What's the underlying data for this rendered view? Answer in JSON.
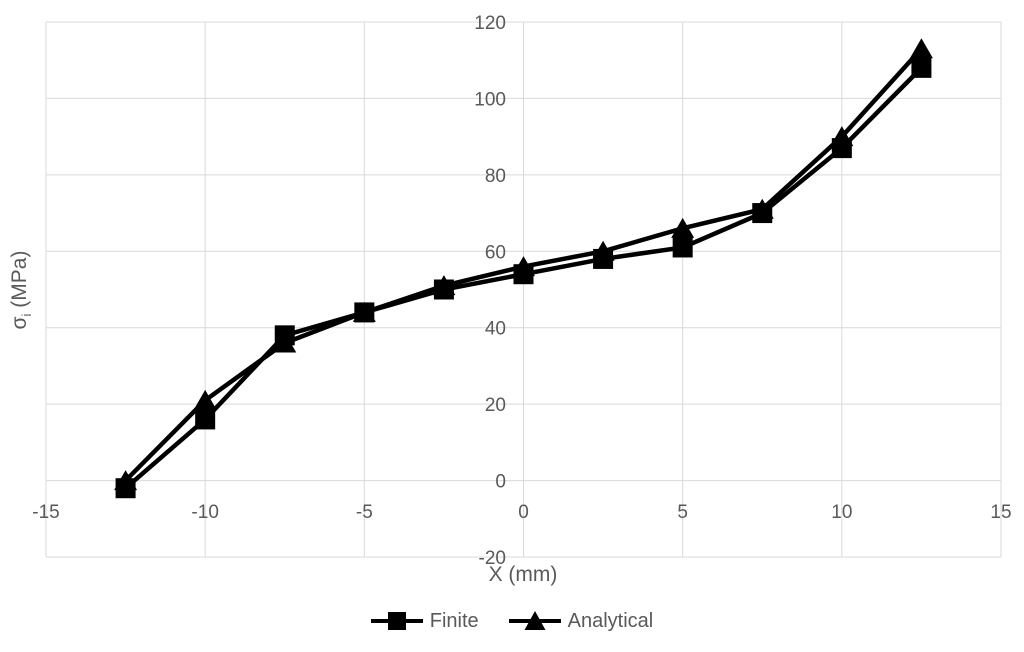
{
  "chart_data": {
    "type": "line",
    "title": "",
    "xlabel": "X (mm)",
    "ylabel": {
      "main": "σ",
      "sub": "i",
      "unit": " (MPa)"
    },
    "xlim": [
      -15,
      15
    ],
    "ylim": [
      -20,
      120
    ],
    "x_ticks": [
      -15,
      -10,
      -5,
      0,
      5,
      10,
      15
    ],
    "y_ticks": [
      120,
      100,
      80,
      60,
      40,
      20,
      0,
      -20
    ],
    "grid": true,
    "legend_position": "bottom",
    "x": [
      -12.5,
      -10,
      -7.5,
      -5,
      -2.5,
      0,
      2.5,
      5,
      7.5,
      10,
      12.5
    ],
    "series": [
      {
        "name": "Finite",
        "marker": "square",
        "color": "#000000",
        "values": [
          -2,
          16,
          38,
          44,
          50,
          54,
          58,
          61,
          70,
          87,
          108
        ]
      },
      {
        "name": "Analytical",
        "marker": "triangle",
        "color": "#000000",
        "values": [
          0,
          21,
          36,
          44,
          51,
          56,
          60,
          66,
          71,
          90,
          113
        ]
      }
    ],
    "colors": {
      "series": "#000000",
      "gridline": "#d9d9d9",
      "tick_label": "#595959",
      "axis_title": "#595959",
      "background": "#ffffff"
    }
  }
}
